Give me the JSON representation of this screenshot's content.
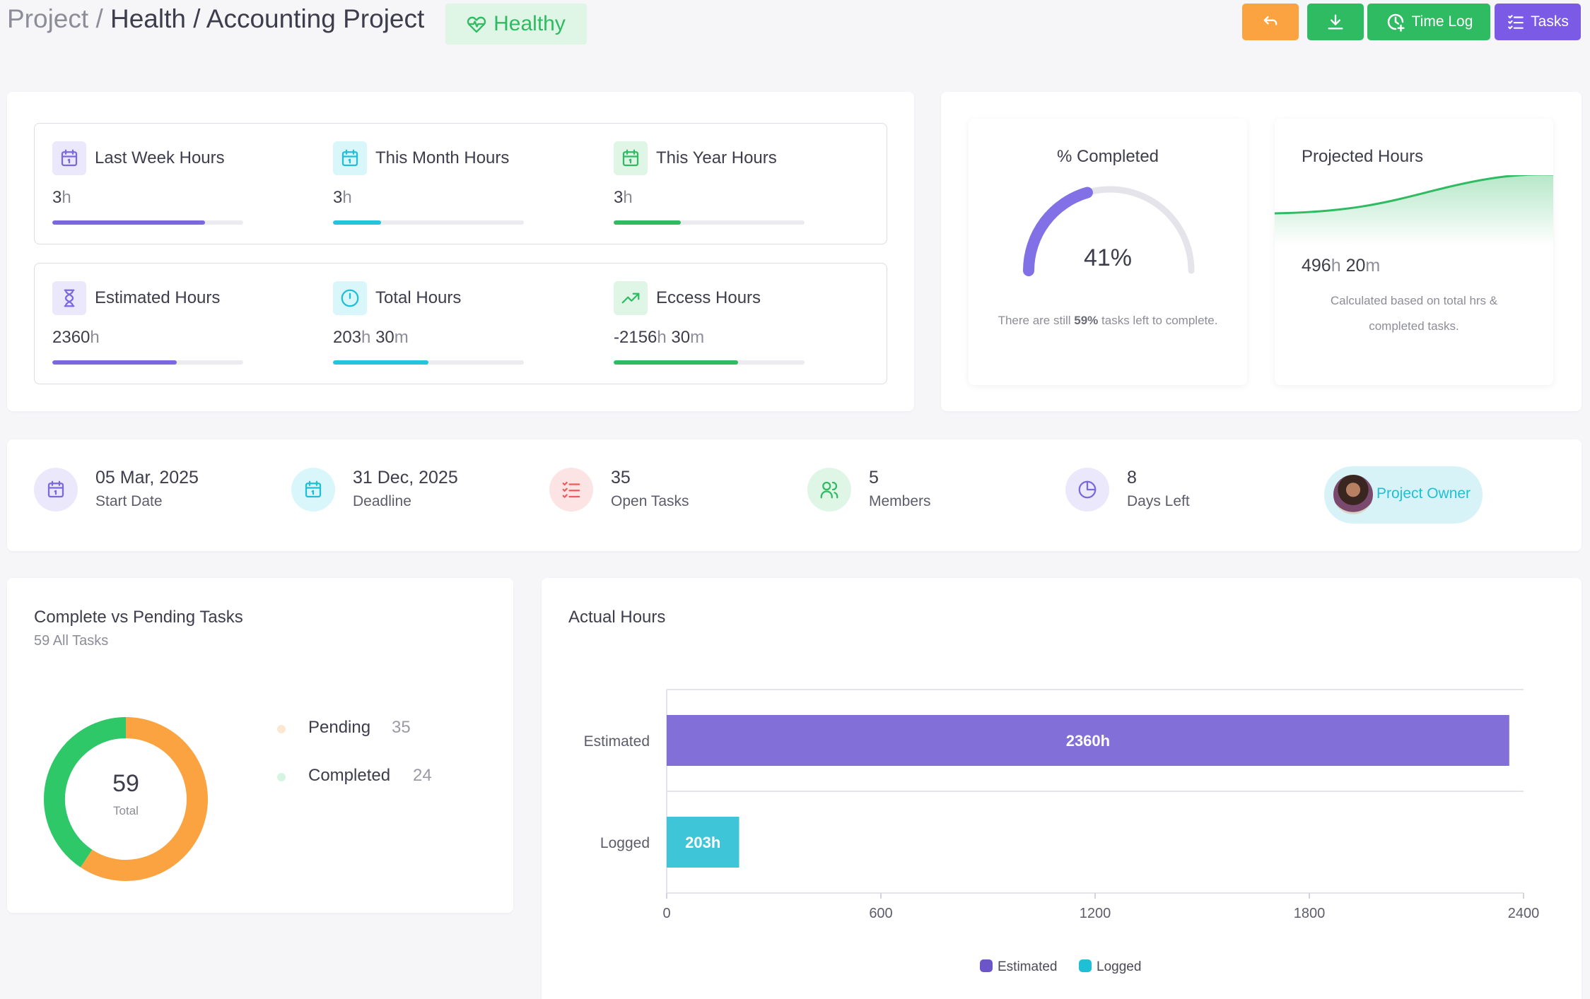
{
  "breadcrumb": {
    "root": "Project",
    "sep1": "/",
    "section": "Health",
    "sep2": "/",
    "project": "Accounting Project"
  },
  "status": {
    "label": "Healthy",
    "icon": "heart-pulse-icon"
  },
  "toolbar": {
    "back_icon": "return-icon",
    "download_icon": "download-icon",
    "timelog_label": "Time Log",
    "tasks_label": "Tasks"
  },
  "hours": [
    {
      "label": "Last Week Hours",
      "value": "3",
      "unit": "h",
      "progress": 0.8,
      "color": "#7b68e0",
      "icon": "calendar-icon"
    },
    {
      "label": "This Month Hours",
      "value": "3",
      "unit": "h",
      "progress": 0.25,
      "color": "#22c5dc",
      "icon": "calendar-icon"
    },
    {
      "label": "This Year Hours",
      "value": "3",
      "unit": "h",
      "progress": 0.35,
      "color": "#2fbb62",
      "icon": "calendar-icon"
    },
    {
      "label": "Estimated Hours",
      "value": "2360",
      "unit": "h",
      "progress": 0.65,
      "color": "#7b68e0",
      "icon": "hourglass-icon"
    },
    {
      "label": "Total Hours",
      "value": "203",
      "unit": "h",
      "value2": "30",
      "unit2": "m",
      "progress": 0.5,
      "color": "#22c5dc",
      "icon": "clock-icon"
    },
    {
      "label": "Eccess Hours",
      "value": "-2156",
      "unit": "h",
      "value2": "30",
      "unit2": "m",
      "progress": 0.65,
      "color": "#2fbb62",
      "icon": "trending-up-icon"
    }
  ],
  "completed": {
    "title": "% Completed",
    "percent": 41,
    "percent_label": "41%",
    "note_pre": "There are still ",
    "note_bold": "59%",
    "note_post": " tasks left to complete."
  },
  "projected": {
    "title": "Projected Hours",
    "hours": "496",
    "hours_unit": "h",
    "minutes": "20",
    "minutes_unit": "m",
    "note": "Calculated based on total hrs & completed tasks."
  },
  "metrics": [
    {
      "value": "05 Mar, 2025",
      "label": "Start Date",
      "icon": "calendar-icon"
    },
    {
      "value": "31 Dec, 2025",
      "label": "Deadline",
      "icon": "calendar-icon"
    },
    {
      "value": "35",
      "label": "Open Tasks",
      "icon": "task-list-icon"
    },
    {
      "value": "5",
      "label": "Members",
      "icon": "users-icon"
    },
    {
      "value": "8",
      "label": "Days Left",
      "icon": "pie-clock-icon"
    }
  ],
  "owner": {
    "label": "Project Owner",
    "avatar": "avatar"
  },
  "tasks_chart": {
    "title": "Complete vs Pending Tasks",
    "subtitle": "59 All Tasks",
    "center_value": "59",
    "center_label": "Total",
    "items": [
      {
        "name": "Pending",
        "value": 35,
        "color": "#fba341"
      },
      {
        "name": "Completed",
        "value": 24,
        "color": "#2ec868"
      }
    ]
  },
  "chart_data": {
    "type": "bar",
    "orientation": "horizontal",
    "title": "Actual Hours",
    "categories": [
      "Estimated",
      "Logged"
    ],
    "values": [
      2360,
      203
    ],
    "data_labels": [
      "2360h",
      "203h"
    ],
    "colors": [
      "#8270d8",
      "#3ec5d8"
    ],
    "xlim": [
      0,
      2400
    ],
    "xticks": [
      "0",
      "600",
      "1200",
      "1800",
      "2400"
    ],
    "legend": [
      {
        "name": "Estimated",
        "color": "#6b55c9"
      },
      {
        "name": "Logged",
        "color": "#1fbfd6"
      }
    ],
    "legend_position": "bottom"
  }
}
